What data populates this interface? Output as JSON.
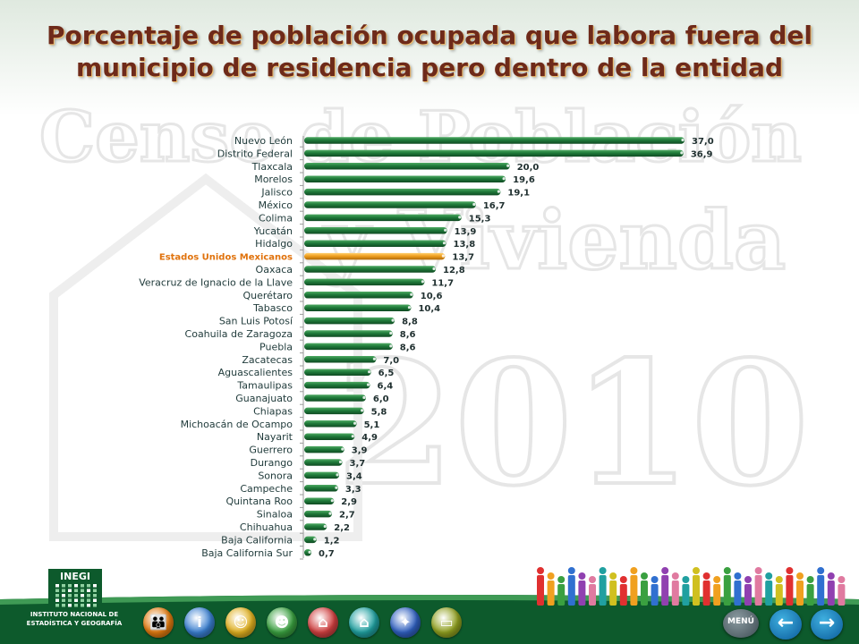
{
  "page": {
    "title": "Porcentaje de población ocupada que labora fuera del municipio de residencia pero dentro de la entidad",
    "watermark_text_1": "Censo de Población",
    "watermark_text_2": "y Vivienda",
    "watermark_year": "2010"
  },
  "logo": {
    "name": "INEGI",
    "text": "INSTITUTO NACIONAL DE ESTADÍSTICA Y GEOGRAFÍA"
  },
  "nav": {
    "icons": [
      {
        "name": "population-icon",
        "color": "#e07a10",
        "glyph": "👪"
      },
      {
        "name": "info-icon",
        "color": "#3a7fd0",
        "glyph": "i"
      },
      {
        "name": "people-icon",
        "color": "#e0b020",
        "glyph": "☺"
      },
      {
        "name": "group-icon",
        "color": "#3aa040",
        "glyph": "☻"
      },
      {
        "name": "house-icon",
        "color": "#d04040",
        "glyph": "⌂"
      },
      {
        "name": "dwelling-icon",
        "color": "#20a0a0",
        "glyph": "⌂"
      },
      {
        "name": "services-icon",
        "color": "#3060c0",
        "glyph": "✦"
      },
      {
        "name": "document-icon",
        "color": "#90a020",
        "glyph": "▭"
      }
    ],
    "menu_label": "MENÚ",
    "back_icon": "arrow-left-icon",
    "forward_icon": "arrow-right-icon"
  },
  "colors": {
    "bar": "#1f7a3a",
    "bar_highlight": "#f0a020",
    "highlight_label": "#e0720c",
    "title": "#6e2a1a"
  },
  "chart_data": {
    "type": "bar",
    "orientation": "horizontal",
    "title": "Porcentaje de población ocupada que labora fuera del municipio de residencia pero dentro de la entidad",
    "xlabel": "",
    "ylabel": "",
    "xlim": [
      0,
      37.0
    ],
    "grid": false,
    "legend": "none",
    "highlight_category": "Estados Unidos Mexicanos",
    "categories": [
      "Nuevo León",
      "Distrito Federal",
      "Tlaxcala",
      "Morelos",
      "Jalisco",
      "México",
      "Colima",
      "Yucatán",
      "Hidalgo",
      "Estados Unidos Mexicanos",
      "Oaxaca",
      "Veracruz de Ignacio de la Llave",
      "Querétaro",
      "Tabasco",
      "San Luis Potosí",
      "Coahuila de Zaragoza",
      "Puebla",
      "Zacatecas",
      "Aguascalientes",
      "Tamaulipas",
      "Guanajuato",
      "Chiapas",
      "Michoacán de Ocampo",
      "Nayarit",
      "Guerrero",
      "Durango",
      "Sonora",
      "Campeche",
      "Quintana Roo",
      "Sinaloa",
      "Chihuahua",
      "Baja California",
      "Baja California Sur"
    ],
    "values": [
      37.0,
      36.9,
      20.0,
      19.6,
      19.1,
      16.7,
      15.3,
      13.9,
      13.8,
      13.7,
      12.8,
      11.7,
      10.6,
      10.4,
      8.8,
      8.6,
      8.6,
      7.0,
      6.5,
      6.4,
      6.0,
      5.8,
      5.1,
      4.9,
      3.9,
      3.7,
      3.4,
      3.3,
      2.9,
      2.7,
      2.2,
      1.2,
      0.7
    ],
    "value_labels": [
      "37,0",
      "36,9",
      "20,0",
      "19,6",
      "19,1",
      "16,7",
      "15,3",
      "13,9",
      "13,8",
      "13,7",
      "12,8",
      "11,7",
      "10,6",
      "10,4",
      "8,8",
      "8,6",
      "8,6",
      "7,0",
      "6,5",
      "6,4",
      "6,0",
      "5,8",
      "5,1",
      "4,9",
      "3,9",
      "3,7",
      "3,4",
      "3,3",
      "2,9",
      "2,7",
      "2,2",
      "1,2",
      "0,7"
    ]
  }
}
